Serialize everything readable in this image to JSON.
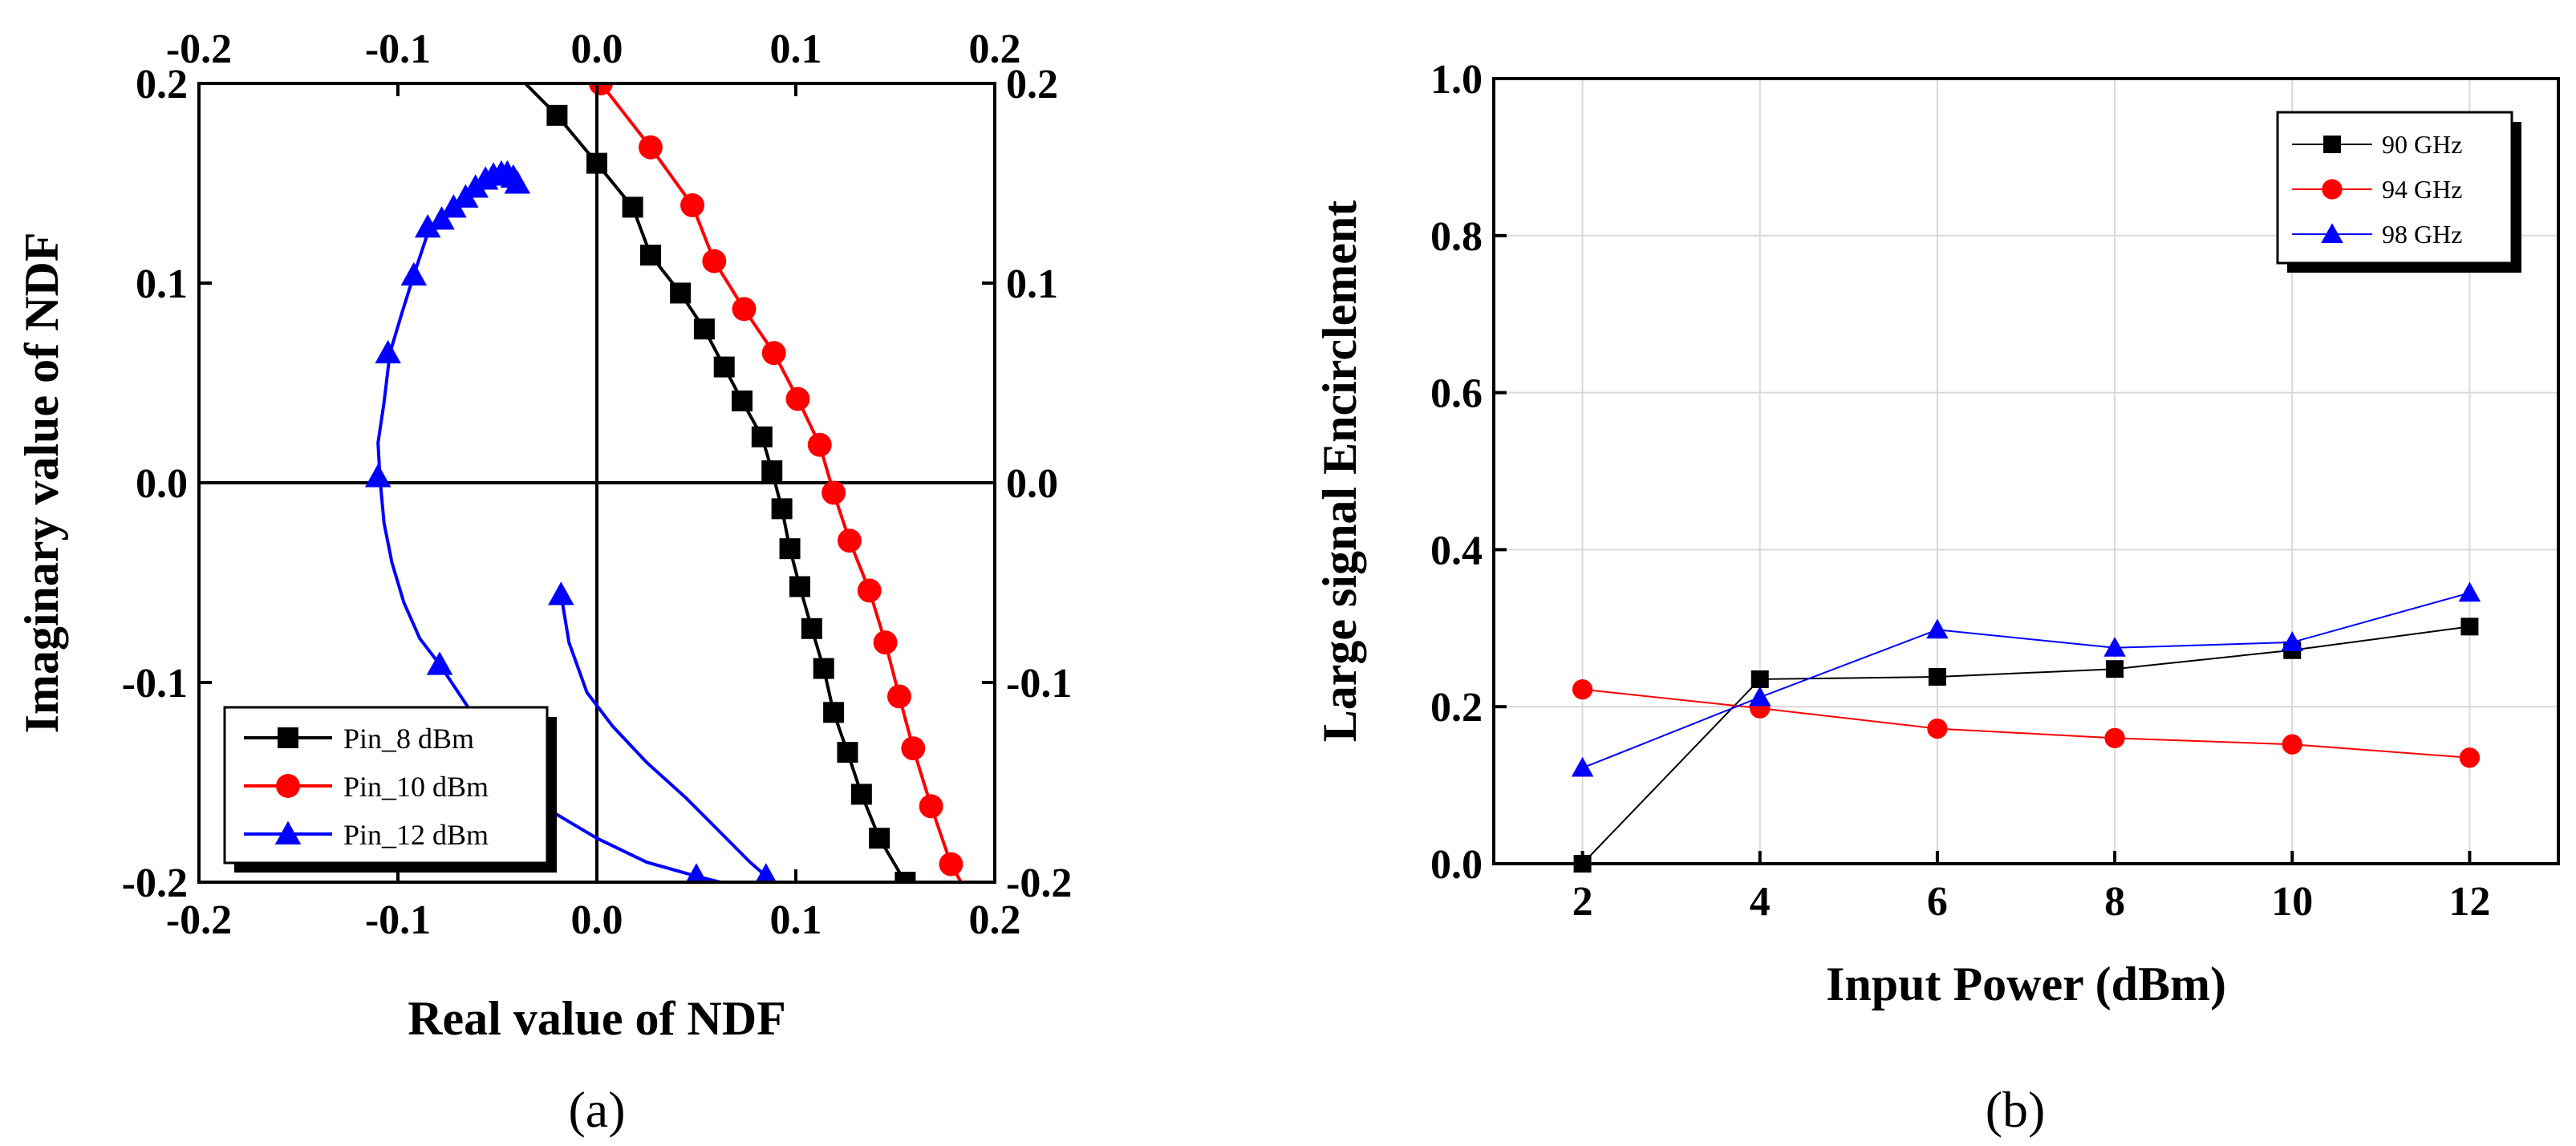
{
  "chart_data": [
    {
      "type": "line",
      "caption": "(a)",
      "xlabel": "Real value of NDF",
      "ylabel": "Imaginary value of NDF",
      "xlim": [
        -0.2,
        0.2
      ],
      "ylim": [
        -0.2,
        0.2
      ],
      "ticks": [
        -0.2,
        -0.1,
        0.0,
        0.1,
        0.2
      ],
      "tick_labels": [
        "-0.2",
        "-0.1",
        "0.0",
        "0.1",
        "0.2"
      ],
      "axes_mirrored": true,
      "origin_lines": true,
      "legend_position": "bottom-left",
      "series": [
        {
          "name": "Pin_8 dBm",
          "color": "#000000",
          "marker": "square",
          "line": [
            [
              -0.036,
              0.2
            ],
            [
              -0.02,
              0.184
            ],
            [
              0.0,
              0.16
            ],
            [
              0.018,
              0.138
            ],
            [
              0.027,
              0.114
            ],
            [
              0.042,
              0.095
            ],
            [
              0.054,
              0.077
            ],
            [
              0.064,
              0.058
            ],
            [
              0.073,
              0.041
            ],
            [
              0.083,
              0.023
            ],
            [
              0.088,
              0.006
            ],
            [
              0.093,
              -0.013
            ],
            [
              0.097,
              -0.033
            ],
            [
              0.102,
              -0.052
            ],
            [
              0.108,
              -0.073
            ],
            [
              0.114,
              -0.093
            ],
            [
              0.119,
              -0.115
            ],
            [
              0.126,
              -0.135
            ],
            [
              0.133,
              -0.156
            ],
            [
              0.142,
              -0.178
            ],
            [
              0.155,
              -0.2
            ]
          ],
          "points": [
            [
              -0.02,
              0.184
            ],
            [
              0.0,
              0.16
            ],
            [
              0.018,
              0.138
            ],
            [
              0.027,
              0.114
            ],
            [
              0.042,
              0.095
            ],
            [
              0.054,
              0.077
            ],
            [
              0.064,
              0.058
            ],
            [
              0.073,
              0.041
            ],
            [
              0.083,
              0.023
            ],
            [
              0.088,
              0.006
            ],
            [
              0.093,
              -0.013
            ],
            [
              0.097,
              -0.033
            ],
            [
              0.102,
              -0.052
            ],
            [
              0.108,
              -0.073
            ],
            [
              0.114,
              -0.093
            ],
            [
              0.119,
              -0.115
            ],
            [
              0.126,
              -0.135
            ],
            [
              0.133,
              -0.156
            ],
            [
              0.142,
              -0.178
            ],
            [
              0.155,
              -0.2
            ]
          ]
        },
        {
          "name": "Pin_10 dBm",
          "color": "#ff0000",
          "marker": "circle",
          "line": [
            [
              0.002,
              0.2
            ],
            [
              0.027,
              0.168
            ],
            [
              0.048,
              0.139
            ],
            [
              0.059,
              0.111
            ],
            [
              0.074,
              0.087
            ],
            [
              0.089,
              0.065
            ],
            [
              0.101,
              0.042
            ],
            [
              0.112,
              0.019
            ],
            [
              0.119,
              -0.005
            ],
            [
              0.127,
              -0.029
            ],
            [
              0.137,
              -0.054
            ],
            [
              0.145,
              -0.08
            ],
            [
              0.152,
              -0.107
            ],
            [
              0.159,
              -0.133
            ],
            [
              0.168,
              -0.162
            ],
            [
              0.178,
              -0.191
            ],
            [
              0.183,
              -0.2
            ]
          ],
          "points": [
            [
              0.002,
              0.2
            ],
            [
              0.027,
              0.168
            ],
            [
              0.048,
              0.139
            ],
            [
              0.059,
              0.111
            ],
            [
              0.074,
              0.087
            ],
            [
              0.089,
              0.065
            ],
            [
              0.101,
              0.042
            ],
            [
              0.112,
              0.019
            ],
            [
              0.119,
              -0.005
            ],
            [
              0.127,
              -0.029
            ],
            [
              0.137,
              -0.054
            ],
            [
              0.145,
              -0.08
            ],
            [
              0.152,
              -0.107
            ],
            [
              0.159,
              -0.133
            ],
            [
              0.168,
              -0.162
            ],
            [
              0.178,
              -0.191
            ]
          ]
        },
        {
          "name": "Pin_12 dBm",
          "color": "#0000ff",
          "marker": "triangle",
          "line": [
            [
              -0.039,
              0.15
            ],
            [
              -0.041,
              0.154
            ],
            [
              -0.044,
              0.155
            ],
            [
              -0.047,
              0.155
            ],
            [
              -0.051,
              0.154
            ],
            [
              -0.055,
              0.152
            ],
            [
              -0.06,
              0.148
            ],
            [
              -0.067,
              0.143
            ],
            [
              -0.072,
              0.138
            ],
            [
              -0.078,
              0.132
            ],
            [
              -0.085,
              0.125
            ],
            [
              -0.092,
              0.104
            ],
            [
              -0.098,
              0.085
            ],
            [
              -0.104,
              0.065
            ],
            [
              -0.107,
              0.04
            ],
            [
              -0.11,
              0.02
            ],
            [
              -0.109,
              0.002
            ],
            [
              -0.107,
              -0.02
            ],
            [
              -0.103,
              -0.04
            ],
            [
              -0.097,
              -0.06
            ],
            [
              -0.089,
              -0.078
            ],
            [
              -0.079,
              -0.091
            ],
            [
              -0.065,
              -0.112
            ],
            [
              -0.052,
              -0.13
            ],
            [
              -0.038,
              -0.15
            ],
            [
              -0.022,
              -0.165
            ],
            [
              0.0,
              -0.178
            ],
            [
              0.025,
              -0.19
            ],
            [
              0.05,
              -0.197
            ],
            [
              0.062,
              -0.2
            ]
          ],
          "line2": [
            [
              -0.018,
              -0.056
            ],
            [
              -0.014,
              -0.08
            ],
            [
              -0.005,
              -0.105
            ],
            [
              0.008,
              -0.122
            ],
            [
              0.025,
              -0.14
            ],
            [
              0.045,
              -0.158
            ],
            [
              0.062,
              -0.175
            ],
            [
              0.077,
              -0.19
            ],
            [
              0.085,
              -0.197
            ],
            [
              0.089,
              -0.2
            ]
          ],
          "points": [
            [
              -0.04,
              0.15
            ],
            [
              -0.042,
              0.153
            ],
            [
              -0.045,
              0.155
            ],
            [
              -0.048,
              0.155
            ],
            [
              -0.052,
              0.154
            ],
            [
              -0.056,
              0.152
            ],
            [
              -0.061,
              0.148
            ],
            [
              -0.066,
              0.143
            ],
            [
              -0.072,
              0.138
            ],
            [
              -0.078,
              0.132
            ],
            [
              -0.085,
              0.128
            ],
            [
              -0.092,
              0.104
            ],
            [
              -0.105,
              0.065
            ],
            [
              -0.11,
              0.003
            ],
            [
              -0.079,
              -0.091
            ],
            [
              -0.018,
              -0.056
            ],
            [
              0.05,
              -0.197
            ],
            [
              0.085,
              -0.197
            ]
          ]
        }
      ]
    },
    {
      "type": "line",
      "caption": "(b)",
      "xlabel": "Input Power (dBm)",
      "ylabel": "Large signal Encirclement",
      "x": [
        2,
        4,
        6,
        8,
        10,
        12
      ],
      "x_tick_labels": [
        "2",
        "4",
        "6",
        "8",
        "10",
        "12"
      ],
      "xlim": [
        1,
        13
      ],
      "ylim": [
        0,
        1
      ],
      "y_ticks": [
        0.0,
        0.2,
        0.4,
        0.6,
        0.8,
        1.0
      ],
      "y_tick_labels": [
        "0.0",
        "0.2",
        "0.4",
        "0.6",
        "0.8",
        "1.0"
      ],
      "grid": true,
      "legend_position": "top-right",
      "series": [
        {
          "name": "90 GHz",
          "color": "#000000",
          "marker": "square",
          "values": [
            0.0,
            0.235,
            0.238,
            0.248,
            0.272,
            0.302
          ]
        },
        {
          "name": "94 GHz",
          "color": "#ff0000",
          "marker": "circle",
          "values": [
            0.222,
            0.198,
            0.172,
            0.16,
            0.152,
            0.135
          ]
        },
        {
          "name": "98 GHz",
          "color": "#0000ff",
          "marker": "triangle",
          "values": [
            0.122,
            0.212,
            0.298,
            0.275,
            0.282,
            0.345
          ]
        }
      ]
    }
  ]
}
